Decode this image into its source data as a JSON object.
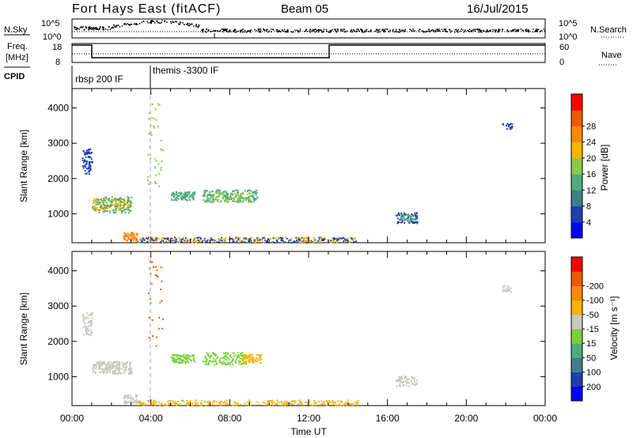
{
  "header": {
    "title": "Fort Hays East (fitACF)",
    "beam": "Beam 05",
    "date": "16/Jul/2015"
  },
  "top_panels": {
    "nsky": {
      "label": "N.Sky",
      "ticks": [
        "10^5",
        "10^0"
      ],
      "right_label": "N.Search",
      "right_ticks": [
        "10^5",
        "10^0"
      ]
    },
    "freq": {
      "label_line1": "Freq.",
      "label_line2": "[MHz]",
      "ticks": [
        "18",
        "8"
      ],
      "right_label": "Nave",
      "right_ticks": [
        "60",
        "0"
      ]
    },
    "cpid": {
      "label": "CPID",
      "segments": [
        "rbsp 200 IF",
        "themis -3300 IF"
      ]
    }
  },
  "time_axis": {
    "label": "Time UT",
    "ticks": [
      "00:00",
      "04:00",
      "08:00",
      "12:00",
      "16:00",
      "20:00",
      "00:00"
    ]
  },
  "chart_data": [
    {
      "type": "heatmap",
      "title": "",
      "xlabel": "Time UT",
      "ylabel": "Slant Range [km]",
      "ylim": [
        180,
        4550
      ],
      "y_ticks": [
        "1000",
        "2000",
        "3000",
        "4000"
      ],
      "colorbar": {
        "label": "Power [dB]",
        "range": [
          0,
          32
        ],
        "ticks": [
          "4",
          "8",
          "12",
          "16",
          "20",
          "24",
          "28"
        ],
        "colors": [
          "#0000ff",
          "#1f3fb0",
          "#3d7f8a",
          "#4faa7a",
          "#8cc84b",
          "#f4b400",
          "#f58a00",
          "#ee5a00",
          "#ff0000"
        ]
      },
      "clusters": [
        {
          "t": [
            0.5,
            1.0
          ],
          "r": [
            2150,
            2850
          ],
          "color": "#1f3fb0",
          "n": 70
        },
        {
          "t": [
            1.0,
            3.0
          ],
          "r": [
            1100,
            1450
          ],
          "color": "#f4b400",
          "n": 130
        },
        {
          "t": [
            1.0,
            3.0
          ],
          "r": [
            1050,
            1500
          ],
          "color": "#4faa7a",
          "n": 120
        },
        {
          "t": [
            2.6,
            3.3
          ],
          "r": [
            250,
            500
          ],
          "color": "#f58a00",
          "n": 60
        },
        {
          "t": [
            3.8,
            4.6
          ],
          "r": [
            1800,
            4400
          ],
          "color": "#8cc84b",
          "n": 40
        },
        {
          "t": [
            5.0,
            6.2
          ],
          "r": [
            1400,
            1650
          ],
          "color": "#4faa7a",
          "n": 90
        },
        {
          "t": [
            6.6,
            9.4
          ],
          "r": [
            1350,
            1700
          ],
          "color": "#4faa7a",
          "n": 170
        },
        {
          "t": [
            6.8,
            9.0
          ],
          "r": [
            1350,
            1650
          ],
          "color": "#8cc84b",
          "n": 90
        },
        {
          "t": [
            3.3,
            14.5
          ],
          "r": [
            200,
            350
          ],
          "color": "#1f3fb0",
          "n": 220
        },
        {
          "t": [
            3.3,
            14.5
          ],
          "r": [
            200,
            350
          ],
          "color": "#f4b400",
          "n": 130
        },
        {
          "t": [
            16.4,
            17.5
          ],
          "r": [
            750,
            1050
          ],
          "color": "#1f3fb0",
          "n": 60
        },
        {
          "t": [
            16.6,
            17.4
          ],
          "r": [
            800,
            1000
          ],
          "color": "#4faa7a",
          "n": 40
        },
        {
          "t": [
            21.8,
            22.3
          ],
          "r": [
            3400,
            3600
          ],
          "color": "#1f3fb0",
          "n": 18
        }
      ]
    },
    {
      "type": "heatmap",
      "title": "",
      "xlabel": "Time UT",
      "ylabel": "Slant Range [km]",
      "ylim": [
        180,
        4550
      ],
      "y_ticks": [
        "1000",
        "2000",
        "3000",
        "4000"
      ],
      "colorbar": {
        "label": "Velocity [m s⁻¹]",
        "range": [
          -250,
          250
        ],
        "ticks": [
          "200",
          "100",
          "50",
          "15",
          "-15",
          "-50",
          "-100",
          "-200"
        ],
        "colors": [
          "#0000ff",
          "#1f3fb0",
          "#3d7f8a",
          "#4faa7a",
          "#7ad13a",
          "#c8c8c0",
          "#f4b400",
          "#f58a00",
          "#ee5a00",
          "#ff0000"
        ]
      },
      "clusters": [
        {
          "t": [
            0.5,
            1.0
          ],
          "r": [
            2150,
            2850
          ],
          "color": "#c8c8c0",
          "n": 60
        },
        {
          "t": [
            1.0,
            3.0
          ],
          "r": [
            1100,
            1450
          ],
          "color": "#c8c8c0",
          "n": 200
        },
        {
          "t": [
            2.6,
            3.3
          ],
          "r": [
            250,
            500
          ],
          "color": "#c8c8c0",
          "n": 50
        },
        {
          "t": [
            3.8,
            4.6
          ],
          "r": [
            1800,
            4400
          ],
          "color": "#ee5a00",
          "n": 30
        },
        {
          "t": [
            5.0,
            6.2
          ],
          "r": [
            1400,
            1650
          ],
          "color": "#7ad13a",
          "n": 90
        },
        {
          "t": [
            6.6,
            8.8
          ],
          "r": [
            1350,
            1700
          ],
          "color": "#7ad13a",
          "n": 140
        },
        {
          "t": [
            8.6,
            9.6
          ],
          "r": [
            1400,
            1650
          ],
          "color": "#f4b400",
          "n": 70
        },
        {
          "t": [
            3.3,
            14.5
          ],
          "r": [
            200,
            350
          ],
          "color": "#f4b400",
          "n": 260
        },
        {
          "t": [
            16.4,
            17.5
          ],
          "r": [
            750,
            1050
          ],
          "color": "#c8c8c0",
          "n": 60
        },
        {
          "t": [
            21.8,
            22.3
          ],
          "r": [
            3400,
            3600
          ],
          "color": "#c8c8c0",
          "n": 18
        }
      ]
    }
  ]
}
